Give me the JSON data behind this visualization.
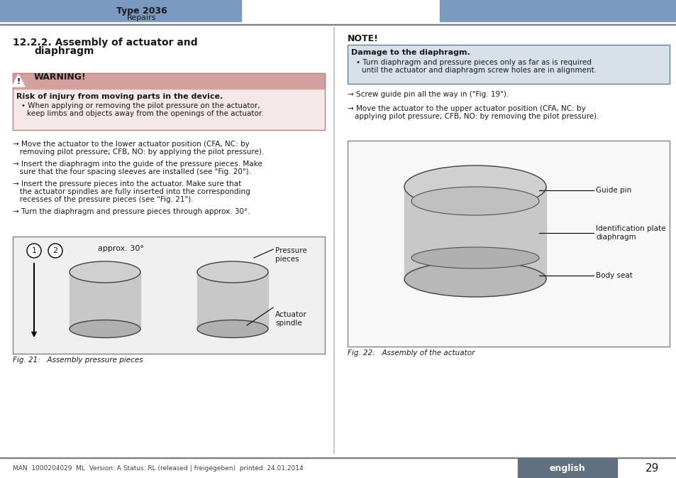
{
  "title_type": "Type 2036",
  "title_sub": "Repairs",
  "header_color": "#7a9bbf",
  "section_title": "12.2.2. Assembly of actuator and\n         diaphragm",
  "warning_title": "WARNING!",
  "warning_box_color": "#c0a0a0",
  "warning_text_bold": "Risk of injury from moving parts in the device.",
  "warning_text": "When applying or removing the pilot pressure on the actuator,\nkeep limbs and objects away from the openings of the actuator.",
  "warning_bg": "#f5e8e8",
  "warning_border": "#c08080",
  "note_title": "NOTE!",
  "note_damage_bold": "Damage to the diaphragm.",
  "note_damage_bg": "#d0d8e8",
  "note_damage_border": "#6080a0",
  "note_damage_text": "Turn diaphragm and pressure pieces only as far as is required\nuntil the actuator and diaphragm screw holes are in alignment.",
  "note_arrow1": "→ Screw guide pin all the way in (\"Fig. 19\").",
  "note_arrow2": "→ Move the actuator to the upper actuator position (CFA, NC: by\n   applying pilot pressure; CFB, NO: by removing the pilot pressure).",
  "arrow_items_left": [
    "→ Move the actuator to the lower actuator position (CFA, NC: by\n   removing pilot pressure; CFB, NO: by applying the pilot pressure).",
    "→ Insert the diaphragm into the guide of the pressure pieces. Make\n   sure that the four spacing sleeves are installed (see \"Fig. 20\").",
    "→ Insert the pressure pieces into the actuator. Make sure that\n   the actuator spindles are fully inserted into the corresponding\n   recesses of the pressure pieces (see \"Fig. 21\").",
    "→ Turn the diaphragm and pressure pieces through approx. 30°."
  ],
  "fig21_caption": "Fig. 21:   Assembly pressure pieces",
  "fig22_caption": "Fig. 22:   Assembly of the actuator",
  "right_labels": [
    "Guide pin",
    "Identification plate\ndiaphragm",
    "Body seat"
  ],
  "footer_text": "MAN  1000204029  ML  Version: A Status: RL (released | freigegeben)  printed: 24.01.2014",
  "footer_lang": "english",
  "footer_page": "29",
  "footer_lang_bg": "#607080",
  "bg_color": "#ffffff",
  "text_color": "#1a1a1a",
  "divider_color": "#808080",
  "body_bg": "#f5e8e8"
}
